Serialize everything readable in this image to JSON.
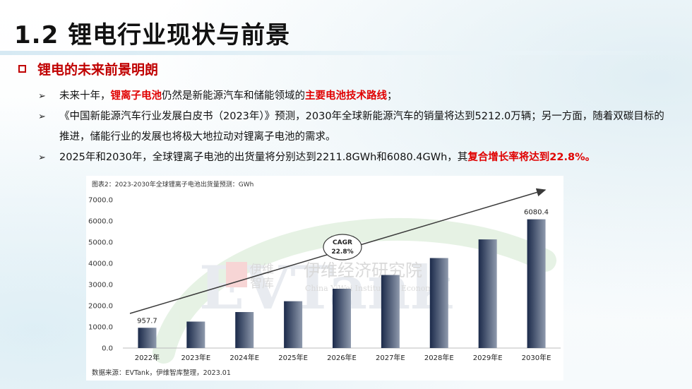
{
  "page": {
    "title": "1.2 锂电行业现状与前景",
    "section_label": "锂电的未来前景明朗"
  },
  "bullets": [
    {
      "parts": [
        {
          "text": "未来十年，",
          "highlight": false
        },
        {
          "text": "锂离子电池",
          "highlight": true
        },
        {
          "text": "仍然是新能源汽车和储能领域的",
          "highlight": false
        },
        {
          "text": "主要电池技术路线",
          "highlight": true
        },
        {
          "text": "；",
          "highlight": false
        }
      ]
    },
    {
      "parts": [
        {
          "text": "《中国新能源汽车行业发展白皮书（2023年）》预测，2030年全球新能源汽车的销量将达到5212.0万辆；另一方面，随着双碳目标的推进，储能行业的发展也将极大地拉动对锂离子电池的需求。",
          "highlight": false
        }
      ]
    },
    {
      "parts": [
        {
          "text": "2025年和2030年，全球锂离子电池的出货量将分别达到2211.8GWh和6080.4GWh，其",
          "highlight": false
        },
        {
          "text": "复合增长率将达到22.8%。",
          "highlight": true
        }
      ]
    }
  ],
  "chart_data": {
    "type": "bar",
    "title": "图表2：2023-2030年全球锂离子电池出货量预测：GWh",
    "categories": [
      "2022年",
      "2023年E",
      "2024年E",
      "2025年E",
      "2026年E",
      "2027年E",
      "2028年E",
      "2029年E",
      "2030年E"
    ],
    "values": [
      957.7,
      1250,
      1700,
      2211.8,
      2800,
      3450,
      4250,
      5130,
      6080.4
    ],
    "data_labels": [
      "957.7",
      "",
      "",
      "",
      "",
      "",
      "",
      "",
      "6080.4"
    ],
    "yticks": [
      "7000.0",
      "6000.0",
      "5000.0",
      "4000.0",
      "3000.0",
      "2000.0",
      "1000.0",
      "0.0"
    ],
    "ylim": [
      0,
      7000
    ],
    "grid": false,
    "bar_color_start": "#1b2a4a",
    "bar_color_end": "#8f9aad",
    "annotation": {
      "line1": "CAGR",
      "line2": "22.8%"
    },
    "source": "数据来源：EVTank，伊维智库整理，2023.01"
  },
  "watermark": {
    "brand": "EVTank",
    "cn_short_1": "伊维",
    "cn_short_2": "智库",
    "cn_full": "伊维经济研究院",
    "en_full": "China YiWei Institute of Economics"
  },
  "colors": {
    "accent_red": "#c00000",
    "highlight_red": "#e00000"
  }
}
